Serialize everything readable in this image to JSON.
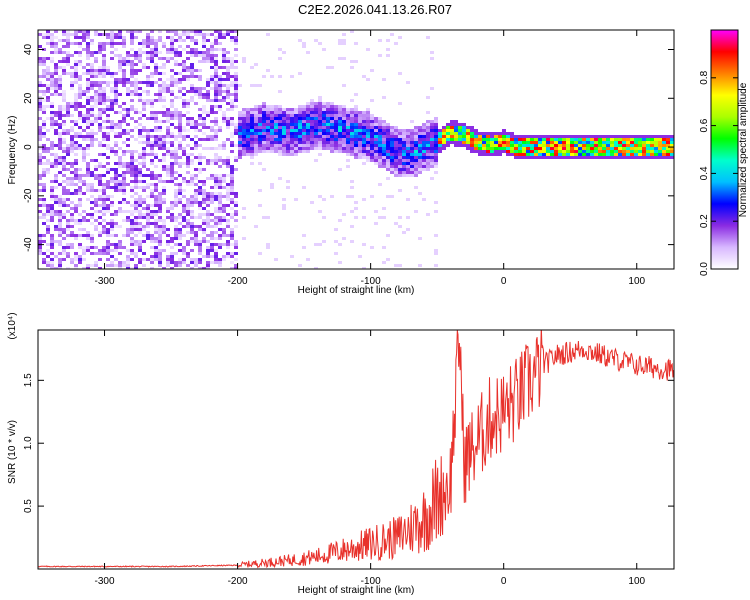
{
  "title": "C2E2.2026.041.13.26.R07",
  "chart_data": [
    {
      "type": "heatmap",
      "xlabel": "Height of straight line (km)",
      "ylabel": "Frequency (Hz)",
      "xlim": [
        -350,
        128
      ],
      "ylim": [
        -50,
        48
      ],
      "xticks": [
        -300,
        -200,
        -100,
        0,
        100
      ],
      "yticks": [
        -40,
        -20,
        0,
        20,
        40
      ],
      "colorbar": {
        "label": "Normalized spectral amplitude",
        "range": [
          0,
          1
        ],
        "ticks": [
          0.0,
          0.2,
          0.4,
          0.6,
          0.8
        ],
        "tick_labels": [
          "0.0",
          "0.2",
          "0.4",
          "0.6",
          "0.8"
        ],
        "colors": [
          "#ffffff",
          "#d8b8ff",
          "#8a2be2",
          "#0000ff",
          "#00bfff",
          "#00ffcc",
          "#00ff00",
          "#aaff00",
          "#ffff00",
          "#ff8000",
          "#ff0000",
          "#ff00ff"
        ]
      },
      "regions": [
        {
          "name": "noise",
          "x_range": [
            -350,
            -200
          ],
          "amplitude": 0.15
        },
        {
          "name": "transition",
          "x_range": [
            -200,
            -50
          ],
          "amplitude": 0.3
        },
        {
          "name": "tone",
          "x_range": [
            -50,
            128
          ],
          "amplitude": 0.85
        }
      ],
      "ridge": {
        "x": [
          -200,
          -180,
          -160,
          -140,
          -120,
          -100,
          -80,
          -70,
          -60,
          -50,
          -40,
          -30,
          -20,
          -10,
          0,
          10,
          20,
          50,
          100,
          128
        ],
        "y": [
          5,
          8,
          6,
          9,
          7,
          4,
          -2,
          -3,
          0,
          2,
          6,
          5,
          2,
          1,
          2,
          0,
          0,
          0,
          0,
          0
        ]
      }
    },
    {
      "type": "line",
      "xlabel": "Height of straight line (km)",
      "ylabel": "SNR (10 * v/v)",
      "y_multiplier": "(x10⁴)",
      "xlim": [
        -350,
        128
      ],
      "ylim": [
        0,
        1.9
      ],
      "xticks": [
        -300,
        -200,
        -100,
        0,
        100
      ],
      "yticks": [
        0.5,
        1.0,
        1.5
      ],
      "ytick_labels": [
        "0.5",
        "1.0",
        "1.5"
      ],
      "series_color": "#e8312b",
      "series": [
        {
          "name": "SNR",
          "x": [
            -350,
            -300,
            -250,
            -200,
            -180,
            -160,
            -140,
            -120,
            -100,
            -80,
            -60,
            -50,
            -40,
            -33,
            -30,
            -20,
            -10,
            0,
            10,
            20,
            30,
            40,
            60,
            80,
            100,
            128
          ],
          "y": [
            0.02,
            0.02,
            0.02,
            0.03,
            0.05,
            0.07,
            0.1,
            0.15,
            0.2,
            0.25,
            0.4,
            0.55,
            0.7,
            1.88,
            0.85,
            1.0,
            1.2,
            1.25,
            1.35,
            1.5,
            1.62,
            1.7,
            1.75,
            1.68,
            1.62,
            1.58
          ]
        }
      ]
    }
  ]
}
